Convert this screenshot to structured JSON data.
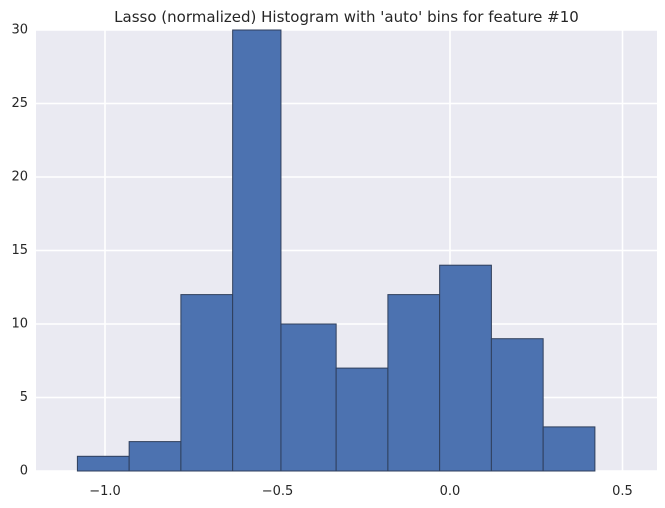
{
  "chart_data": {
    "type": "bar",
    "title": "Lasso (normalized) Histogram with 'auto' bins for feature #10",
    "xlabel": "",
    "ylabel": "",
    "xlim": [
      -1.2,
      0.6
    ],
    "ylim": [
      0,
      30
    ],
    "x_ticks": [
      -1.0,
      -0.5,
      0.0,
      0.5
    ],
    "x_tick_labels": [
      "−1.0",
      "−0.5",
      "0.0",
      "0.5"
    ],
    "y_ticks": [
      0,
      5,
      10,
      15,
      20,
      25,
      30
    ],
    "y_tick_labels": [
      "0",
      "5",
      "10",
      "15",
      "20",
      "25",
      "30"
    ],
    "bins": [
      {
        "start": -1.08,
        "end": -0.93,
        "count": 1
      },
      {
        "start": -0.93,
        "end": -0.78,
        "count": 2
      },
      {
        "start": -0.78,
        "end": -0.63,
        "count": 12
      },
      {
        "start": -0.63,
        "end": -0.49,
        "count": 30
      },
      {
        "start": -0.49,
        "end": -0.33,
        "count": 10
      },
      {
        "start": -0.33,
        "end": -0.18,
        "count": 7
      },
      {
        "start": -0.18,
        "end": -0.03,
        "count": 12
      },
      {
        "start": -0.03,
        "end": 0.12,
        "count": 14
      },
      {
        "start": 0.12,
        "end": 0.27,
        "count": 9
      },
      {
        "start": 0.27,
        "end": 0.42,
        "count": 3
      }
    ],
    "grid": true,
    "colors": {
      "bar_fill": "#4c72b0",
      "bar_edge": "#2f3f5c",
      "plot_background": "#eaeaf2",
      "grid": "#ffffff",
      "text": "#262626"
    }
  }
}
